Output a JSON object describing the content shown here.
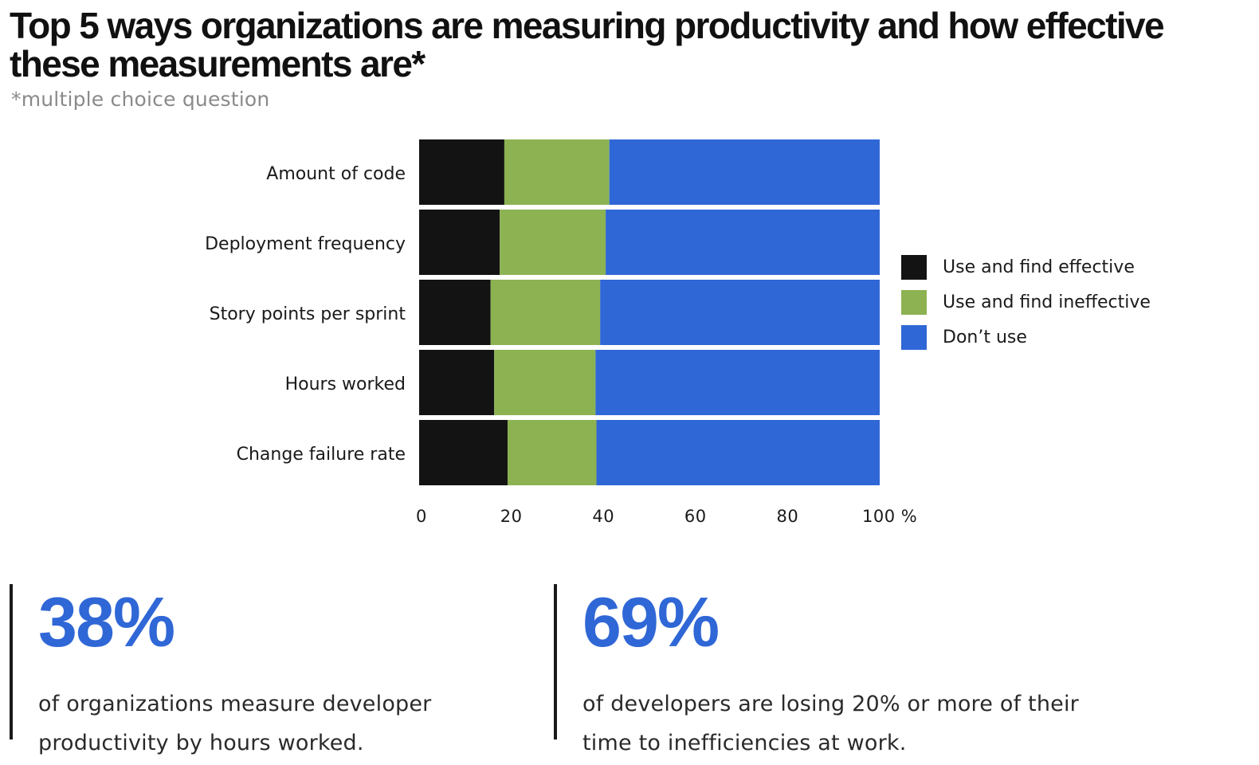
{
  "header": {
    "title": "Top 5 ways organizations are measuring productivity and how effective these measurements are*",
    "subtitle": "*multiple choice question"
  },
  "chart_data": {
    "type": "bar",
    "orientation": "horizontal",
    "stacked": true,
    "categories": [
      "Amount of code",
      "Deployment frequency",
      "Story points per sprint",
      "Hours worked",
      "Change failure rate"
    ],
    "series": [
      {
        "name": "Use and find effective",
        "color": "#131313",
        "values": [
          18.5,
          17.5,
          15.5,
          16.3,
          19.2
        ]
      },
      {
        "name": "Use and find ineffective",
        "color": "#8cb252",
        "values": [
          22.8,
          23.0,
          23.8,
          22.0,
          19.3
        ]
      },
      {
        "name": "Don’t use",
        "color": "#3067d6",
        "values": [
          58.7,
          59.5,
          60.7,
          61.7,
          61.5
        ]
      }
    ],
    "xlim": [
      0,
      100
    ],
    "xticks": [
      "0",
      "20",
      "40",
      "60",
      "80",
      "100 %"
    ],
    "legend_position": "right"
  },
  "stats": [
    {
      "value": "38%",
      "text": "of organizations measure developer productivity by hours worked."
    },
    {
      "value": "69%",
      "text": "of developers are losing 20% or more of their time to inefficiencies at work."
    }
  ]
}
